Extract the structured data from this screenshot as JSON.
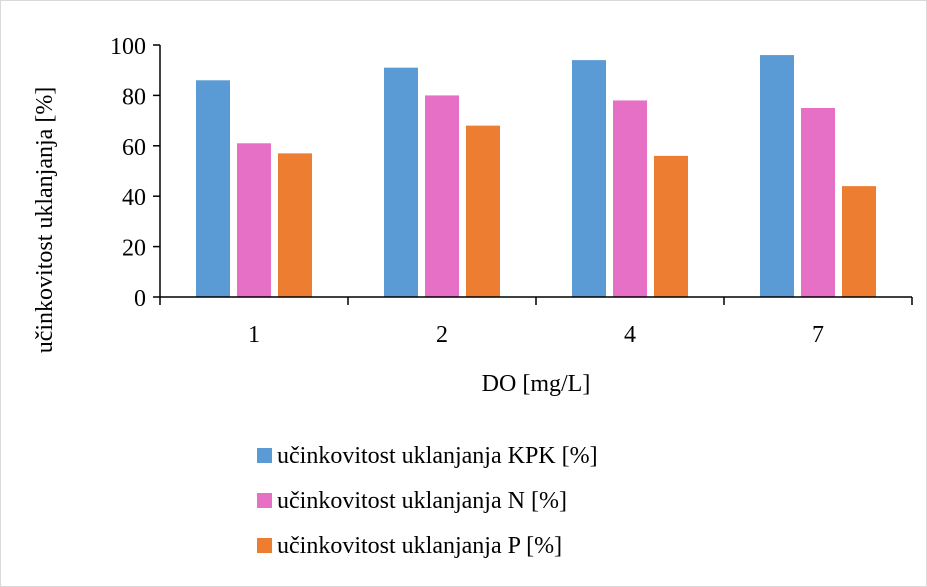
{
  "chart_data": {
    "type": "bar",
    "title": "",
    "xlabel": "DO [mg/L]",
    "ylabel": "učinkovitost uklanjanja [%]",
    "categories": [
      "1",
      "2",
      "4",
      "7"
    ],
    "ylim": [
      0,
      100
    ],
    "yticks": [
      0,
      20,
      40,
      60,
      80,
      100
    ],
    "grid": false,
    "legend_position": "bottom",
    "series": [
      {
        "name": "učinkovitost uklanjanja KPK [%]",
        "color": "#5b9bd5",
        "values": [
          86,
          91,
          94,
          96
        ]
      },
      {
        "name": "učinkovitost uklanjanja N [%]",
        "color": "#e670c6",
        "values": [
          61,
          80,
          78,
          75
        ]
      },
      {
        "name": "učinkovitost uklanjanja P [%]",
        "color": "#ed7d31",
        "values": [
          57,
          68,
          56,
          44
        ]
      }
    ]
  }
}
